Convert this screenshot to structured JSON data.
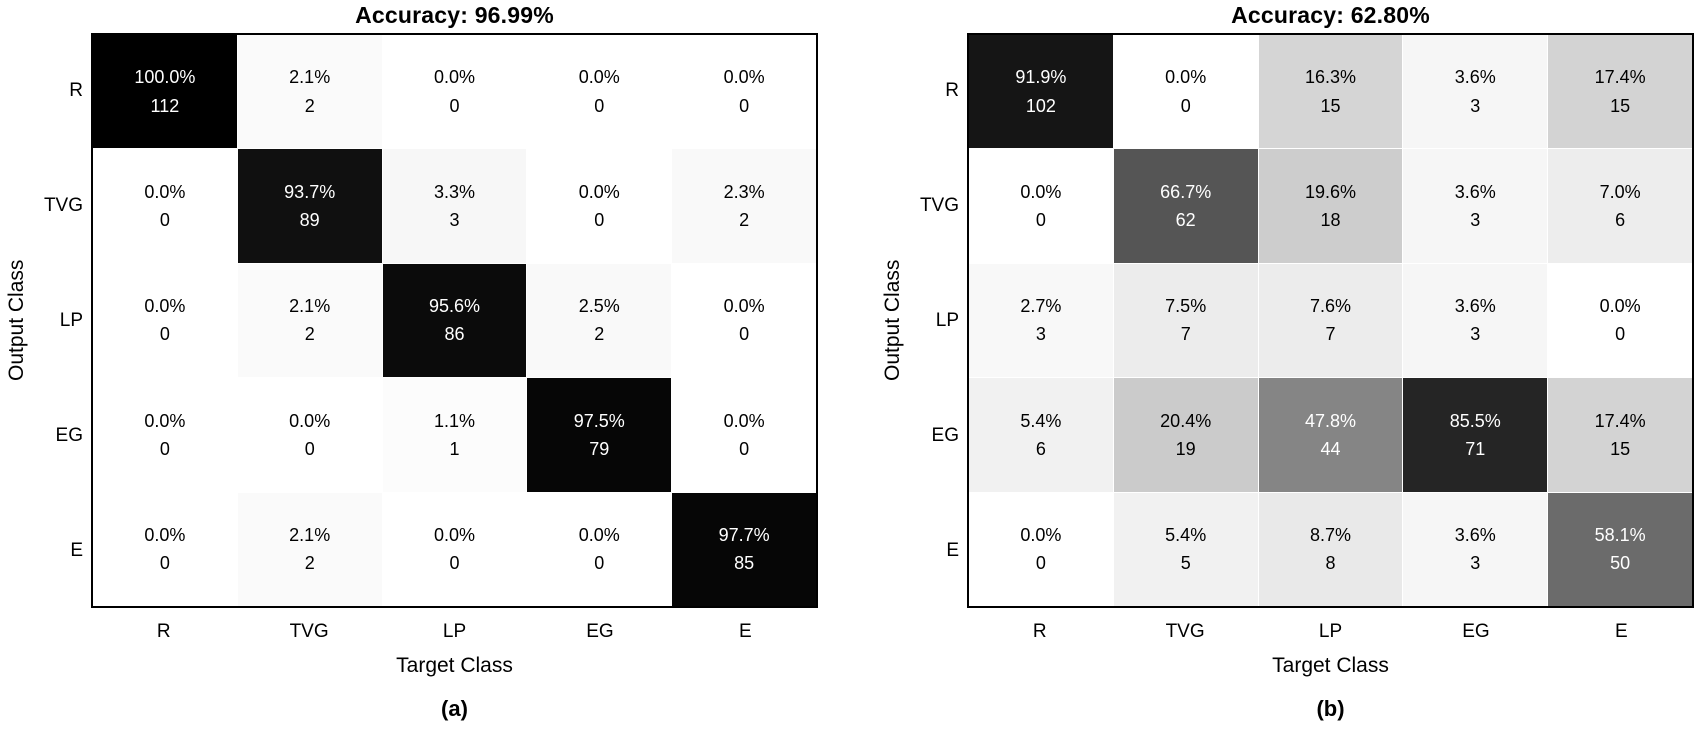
{
  "figure": {
    "description": "Two confusion matrices",
    "colors": {
      "cell_high": "#000000",
      "cell_low": "#ffffff",
      "text_dark": "#000000",
      "text_light": "#ffffff",
      "border": "#000000",
      "light_text_threshold_pct": 45
    }
  },
  "chart_data": [
    {
      "type": "heatmap",
      "panel": "a",
      "title": "Accuracy: 96.99%",
      "xlabel": "Target Class",
      "ylabel": "Output Class",
      "caption": "(a)",
      "x_categories": [
        "R",
        "TVG",
        "LP",
        "EG",
        "E"
      ],
      "y_categories": [
        "R",
        "TVG",
        "LP",
        "EG",
        "E"
      ],
      "legend": "cells show column-normalized percentage (top) and sample count (bottom); shading scales white (0%) to black (100%)",
      "cells": [
        [
          {
            "pct": 100.0,
            "count": 112
          },
          {
            "pct": 2.1,
            "count": 2
          },
          {
            "pct": 0.0,
            "count": 0
          },
          {
            "pct": 0.0,
            "count": 0
          },
          {
            "pct": 0.0,
            "count": 0
          }
        ],
        [
          {
            "pct": 0.0,
            "count": 0
          },
          {
            "pct": 93.7,
            "count": 89
          },
          {
            "pct": 3.3,
            "count": 3
          },
          {
            "pct": 0.0,
            "count": 0
          },
          {
            "pct": 2.3,
            "count": 2
          }
        ],
        [
          {
            "pct": 0.0,
            "count": 0
          },
          {
            "pct": 2.1,
            "count": 2
          },
          {
            "pct": 95.6,
            "count": 86
          },
          {
            "pct": 2.5,
            "count": 2
          },
          {
            "pct": 0.0,
            "count": 0
          }
        ],
        [
          {
            "pct": 0.0,
            "count": 0
          },
          {
            "pct": 0.0,
            "count": 0
          },
          {
            "pct": 1.1,
            "count": 1
          },
          {
            "pct": 97.5,
            "count": 79
          },
          {
            "pct": 0.0,
            "count": 0
          }
        ],
        [
          {
            "pct": 0.0,
            "count": 0
          },
          {
            "pct": 2.1,
            "count": 2
          },
          {
            "pct": 0.0,
            "count": 0
          },
          {
            "pct": 0.0,
            "count": 0
          },
          {
            "pct": 97.7,
            "count": 85
          }
        ]
      ]
    },
    {
      "type": "heatmap",
      "panel": "b",
      "title": "Accuracy: 62.80%",
      "xlabel": "Target Class",
      "ylabel": "Output Class",
      "caption": "(b)",
      "x_categories": [
        "R",
        "TVG",
        "LP",
        "EG",
        "E"
      ],
      "y_categories": [
        "R",
        "TVG",
        "LP",
        "EG",
        "E"
      ],
      "legend": "cells show column-normalized percentage (top) and sample count (bottom); shading scales white (0%) to black (100%)",
      "cells": [
        [
          {
            "pct": 91.9,
            "count": 102
          },
          {
            "pct": 0.0,
            "count": 0
          },
          {
            "pct": 16.3,
            "count": 15
          },
          {
            "pct": 3.6,
            "count": 3
          },
          {
            "pct": 17.4,
            "count": 15
          }
        ],
        [
          {
            "pct": 0.0,
            "count": 0
          },
          {
            "pct": 66.7,
            "count": 62
          },
          {
            "pct": 19.6,
            "count": 18
          },
          {
            "pct": 3.6,
            "count": 3
          },
          {
            "pct": 7.0,
            "count": 6
          }
        ],
        [
          {
            "pct": 2.7,
            "count": 3
          },
          {
            "pct": 7.5,
            "count": 7
          },
          {
            "pct": 7.6,
            "count": 7
          },
          {
            "pct": 3.6,
            "count": 3
          },
          {
            "pct": 0.0,
            "count": 0
          }
        ],
        [
          {
            "pct": 5.4,
            "count": 6
          },
          {
            "pct": 20.4,
            "count": 19
          },
          {
            "pct": 47.8,
            "count": 44
          },
          {
            "pct": 85.5,
            "count": 71
          },
          {
            "pct": 17.4,
            "count": 15
          }
        ],
        [
          {
            "pct": 0.0,
            "count": 0
          },
          {
            "pct": 5.4,
            "count": 5
          },
          {
            "pct": 8.7,
            "count": 8
          },
          {
            "pct": 3.6,
            "count": 3
          },
          {
            "pct": 58.1,
            "count": 50
          }
        ]
      ]
    }
  ]
}
